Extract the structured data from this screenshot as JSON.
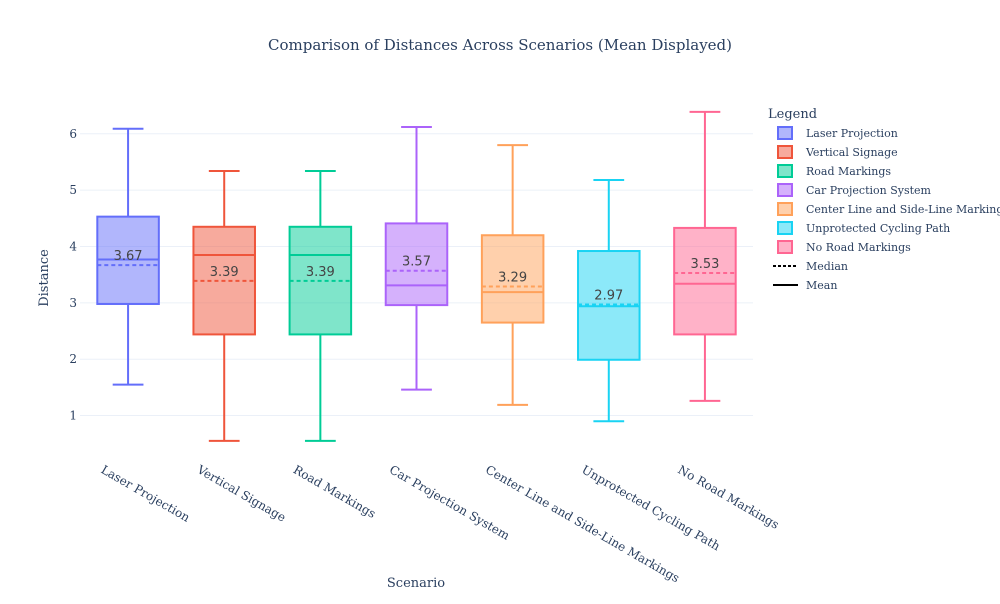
{
  "chart_data": {
    "type": "box",
    "title": "Comparison of Distances Across Scenarios (Mean Displayed)",
    "xlabel": "Scenario",
    "ylabel": "Distance",
    "ylim": [
      0.3,
      6.6
    ],
    "yticks": [
      1,
      2,
      3,
      4,
      5,
      6
    ],
    "grid": true,
    "legend_title": "Legend",
    "legend_position": "top-right",
    "categories": [
      "Laser Projection",
      "Vertical Signage",
      "Road Markings",
      "Car Projection System",
      "Center Line and Side-Line Markings",
      "Unprotected Cycling Path",
      "No Road Markings"
    ],
    "series": [
      {
        "name": "Laser Projection",
        "color": "#636efa",
        "min": 1.55,
        "q1": 2.98,
        "median": 3.77,
        "q3": 4.53,
        "max": 6.09,
        "mean": 3.67
      },
      {
        "name": "Vertical Signage",
        "color": "#ef553b",
        "min": 0.55,
        "q1": 2.44,
        "median": 3.85,
        "q3": 4.35,
        "max": 5.34,
        "mean": 3.39
      },
      {
        "name": "Road Markings",
        "color": "#00cc96",
        "min": 0.55,
        "q1": 2.44,
        "median": 3.85,
        "q3": 4.35,
        "max": 5.34,
        "mean": 3.39
      },
      {
        "name": "Car Projection System",
        "color": "#ab63fa",
        "min": 1.46,
        "q1": 2.96,
        "median": 3.31,
        "q3": 4.41,
        "max": 6.12,
        "mean": 3.57
      },
      {
        "name": "Center Line and Side-Line Markings",
        "color": "#ffa15a",
        "min": 1.19,
        "q1": 2.65,
        "median": 3.19,
        "q3": 4.2,
        "max": 5.8,
        "mean": 3.29
      },
      {
        "name": "Unprotected Cycling Path",
        "color": "#19d3f3",
        "min": 0.9,
        "q1": 1.99,
        "median": 2.94,
        "q3": 3.92,
        "max": 5.18,
        "mean": 2.97
      },
      {
        "name": "No Road Markings",
        "color": "#ff6692",
        "min": 1.26,
        "q1": 2.44,
        "median": 3.34,
        "q3": 4.33,
        "max": 6.39,
        "mean": 3.53
      }
    ],
    "line_legend": [
      {
        "name": "Median",
        "style": "dashed"
      },
      {
        "name": "Mean",
        "style": "solid"
      }
    ]
  }
}
